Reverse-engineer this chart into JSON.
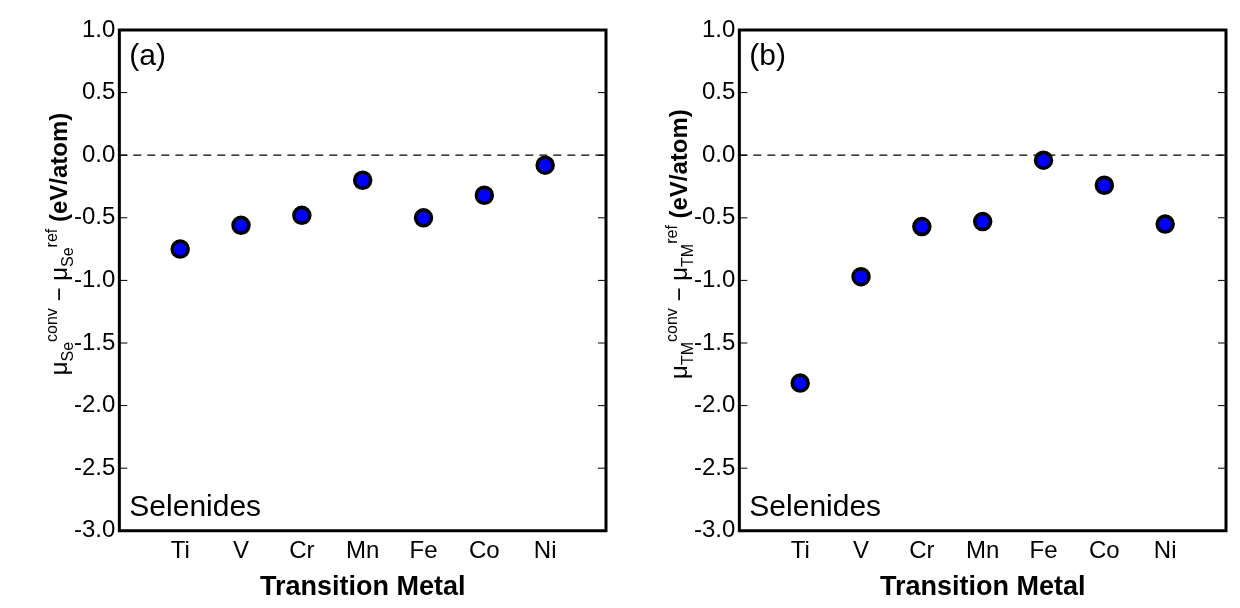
{
  "chart_data": [
    {
      "type": "scatter",
      "xlabel": "Transition Metal",
      "ylabel": "μ$_{Se}$$^{conv}$ − μ$_{Se}$$^{ref}$ (eV/atom)",
      "categories": [
        "Ti",
        "V",
        "Cr",
        "Mn",
        "Fe",
        "Co",
        "Ni"
      ],
      "series": [
        {
          "color": "#0000ff",
          "values": [
            -0.75,
            -0.56,
            -0.48,
            -0.2,
            -0.5,
            -0.32,
            -0.08
          ]
        }
      ],
      "ylim": [
        -3,
        1
      ],
      "yticks": [
        {
          "value": -3,
          "label": "-3.0"
        },
        {
          "value": -2.5,
          "label": "-2.5"
        },
        {
          "value": -2,
          "label": "-2.0"
        },
        {
          "value": -1.5,
          "label": "-1.5"
        },
        {
          "value": -1,
          "label": "-1.0"
        },
        {
          "value": -0.5,
          "label": "-0.5"
        },
        {
          "value": 0,
          "label": "0.0"
        },
        {
          "value": 0.5,
          "label": "0.5"
        },
        {
          "value": 1,
          "label": "1.0"
        }
      ],
      "ref_lines": [
        {
          "axis": "y",
          "value": 0,
          "color": "#000000",
          "line_style": "dashed"
        }
      ],
      "annotations": [
        "(a)",
        "Selenides"
      ],
      "marker": "circle",
      "grid": false,
      "legend": false
    },
    {
      "type": "scatter",
      "xlabel": "Transition Metal",
      "ylabel": "μ$_{TM}$$^{conv}$ − μ$_{TM}$$^{ref}$ (eV/atom)",
      "categories": [
        "Ti",
        "V",
        "Cr",
        "Mn",
        "Fe",
        "Co",
        "Ni"
      ],
      "series": [
        {
          "color": "#0000ff",
          "values": [
            -1.82,
            -0.97,
            -0.57,
            -0.53,
            -0.04,
            -0.24,
            -0.55
          ]
        }
      ],
      "ylim": [
        -3,
        1
      ],
      "yticks": [
        {
          "value": -3,
          "label": "-3.0"
        },
        {
          "value": -2.5,
          "label": "-2.5"
        },
        {
          "value": -2,
          "label": "-2.0"
        },
        {
          "value": -1.5,
          "label": "-1.5"
        },
        {
          "value": -1,
          "label": "-1.0"
        },
        {
          "value": -0.5,
          "label": "-0.5"
        },
        {
          "value": 0,
          "label": "0.0"
        },
        {
          "value": 0.5,
          "label": "0.5"
        },
        {
          "value": 1,
          "label": "1.0"
        }
      ],
      "ref_lines": [
        {
          "axis": "y",
          "value": 0,
          "color": "#000000",
          "line_style": "dashed"
        }
      ],
      "annotations": [
        "(b)",
        "Selenides"
      ],
      "marker": "circle",
      "grid": false,
      "legend": false
    }
  ]
}
